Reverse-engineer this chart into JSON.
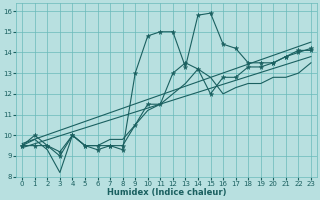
{
  "title": "",
  "xlabel": "Humidex (Indice chaleur)",
  "xlim": [
    -0.5,
    23.5
  ],
  "ylim": [
    8,
    16.4
  ],
  "yticks": [
    8,
    9,
    10,
    11,
    12,
    13,
    14,
    15,
    16
  ],
  "xticks": [
    0,
    1,
    2,
    3,
    4,
    5,
    6,
    7,
    8,
    9,
    10,
    11,
    12,
    13,
    14,
    15,
    16,
    17,
    18,
    19,
    20,
    21,
    22,
    23
  ],
  "bg_color": "#b8e0e0",
  "grid_color": "#6ababa",
  "line_color": "#1a6060",
  "series": [
    {
      "x": [
        0,
        1,
        2,
        3,
        4,
        5,
        6,
        7,
        8,
        9,
        10,
        11,
        12,
        13,
        14,
        15,
        16,
        17,
        18,
        19,
        20,
        21,
        22,
        23
      ],
      "y": [
        9.5,
        10.0,
        9.5,
        9.2,
        10.0,
        9.5,
        9.3,
        9.5,
        9.3,
        13.0,
        14.8,
        15.0,
        15.0,
        13.3,
        15.8,
        15.9,
        14.4,
        14.2,
        13.5,
        13.5,
        13.5,
        13.8,
        14.1,
        14.1
      ],
      "marker": "*",
      "markersize": 3.5,
      "linewidth": 0.8
    },
    {
      "x": [
        0,
        1,
        2,
        3,
        4,
        5,
        6,
        7,
        8,
        9,
        10,
        11,
        12,
        13,
        14,
        15,
        16,
        17,
        18,
        19,
        20,
        21,
        22,
        23
      ],
      "y": [
        9.5,
        9.8,
        9.3,
        8.2,
        10.0,
        9.5,
        9.5,
        9.8,
        9.8,
        10.5,
        11.2,
        11.5,
        12.0,
        12.5,
        13.2,
        12.8,
        12.0,
        12.3,
        12.5,
        12.5,
        12.8,
        12.8,
        13.0,
        13.5
      ],
      "marker": null,
      "markersize": 0,
      "linewidth": 0.8
    },
    {
      "x": [
        0,
        23
      ],
      "y": [
        9.4,
        13.8
      ],
      "marker": null,
      "markersize": 0,
      "linewidth": 0.8
    },
    {
      "x": [
        0,
        23
      ],
      "y": [
        9.6,
        14.5
      ],
      "marker": null,
      "markersize": 0,
      "linewidth": 0.8
    },
    {
      "x": [
        0,
        1,
        2,
        3,
        4,
        5,
        6,
        7,
        8,
        9,
        10,
        11,
        12,
        13,
        14,
        15,
        16,
        17,
        18,
        19,
        20,
        21,
        22,
        23
      ],
      "y": [
        9.5,
        9.5,
        9.5,
        9.0,
        10.0,
        9.5,
        9.5,
        9.5,
        9.5,
        10.5,
        11.5,
        11.5,
        13.0,
        13.5,
        13.2,
        12.0,
        12.8,
        12.8,
        13.3,
        13.3,
        13.5,
        13.8,
        14.0,
        14.2
      ],
      "marker": "*",
      "markersize": 3.5,
      "linewidth": 0.8
    }
  ]
}
